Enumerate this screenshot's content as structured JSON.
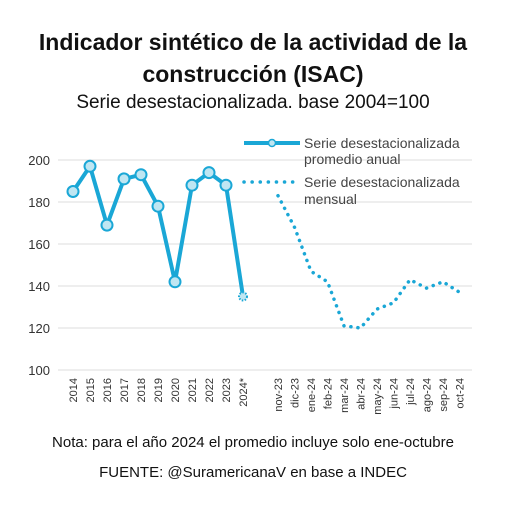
{
  "header": {
    "title_line1": "Indicador sintético de la actividad de la",
    "title_line2": "construcción (ISAC)",
    "subtitle": "Serie desestacionalizada. base 2004=100"
  },
  "footer": {
    "note": "Nota: para el año 2024 el promedio incluye solo ene-octubre",
    "source": "FUENTE: @SuramericanaV en base a INDEC"
  },
  "colors": {
    "line": "#1aa7d6",
    "marker_fill": "#bfe6f2",
    "marker_edge": "#1aa7d6",
    "grid": "#dddddd"
  },
  "chart_data": {
    "type": "line",
    "title": "Indicador sintético de la actividad de la construcción (ISAC)",
    "subtitle": "Serie desestacionalizada. base 2004=100",
    "ylim": [
      100,
      200
    ],
    "yticks": [
      "100",
      "120",
      "140",
      "160",
      "180",
      "200"
    ],
    "grid": "horizontal",
    "legend_position": "top-right",
    "series": [
      {
        "name": "Serie desestacionalizada promedio anual",
        "legend_line1": "Serie desestacionalizada",
        "legend_line2": "promedio anual",
        "style": "solid-with-markers",
        "x": [
          "2014",
          "2015",
          "2016",
          "2017",
          "2018",
          "2019",
          "2020",
          "2021",
          "2022",
          "2023",
          "2024*"
        ],
        "values": [
          185,
          197,
          169,
          191,
          193,
          178,
          142,
          188,
          194,
          188,
          135
        ]
      },
      {
        "name": "Serie desestacionalizada mensual",
        "legend_line1": "Serie desestacionalizada",
        "legend_line2": "mensual",
        "style": "dotted",
        "x": [
          "nov-23",
          "dic-23",
          "ene-24",
          "feb-24",
          "mar-24",
          "abr-24",
          "may-24",
          "jun-24",
          "jul-24",
          "ago-24",
          "sep-24",
          "oct-24"
        ],
        "values": [
          183,
          168,
          147,
          142,
          121,
          120,
          129,
          132,
          143,
          139,
          142,
          137
        ]
      }
    ]
  }
}
